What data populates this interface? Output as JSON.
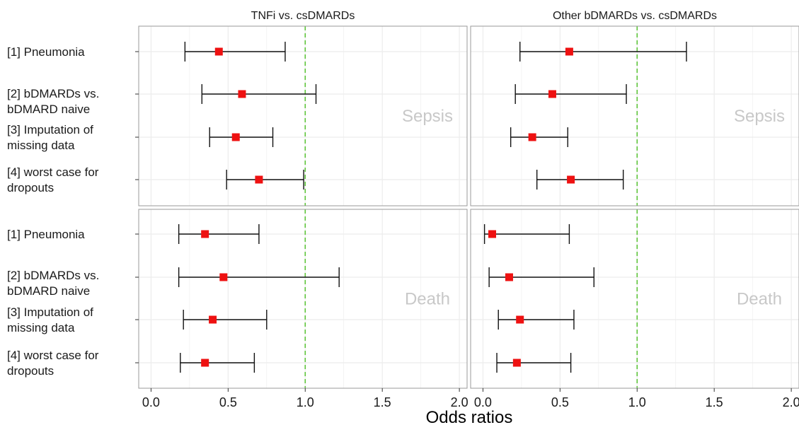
{
  "chart_data": {
    "type": "forest",
    "xlabel": "Odds ratios",
    "xlim": [
      -0.08,
      2.05
    ],
    "x_ticks": [
      "0.0",
      "0.5",
      "1.0",
      "1.5",
      "2.0"
    ],
    "reference_line": 1.0,
    "reference_color": "#5ec43a",
    "point_color": "#ee1111",
    "grid": true,
    "columns": [
      "TNFi vs. csDMARDs",
      "Other bDMARDs vs. csDMARDs"
    ],
    "rows": [
      "Sepsis",
      "Death"
    ],
    "categories": [
      [
        "[1] Pneumonia"
      ],
      [
        "[2] bDMARDs vs.",
        "bDMARD naive"
      ],
      [
        "[3] Imputation of",
        "missing data"
      ],
      [
        "[4] worst case for",
        "dropouts"
      ]
    ],
    "panels": [
      {
        "row": "Sepsis",
        "column": "TNFi vs. csDMARDs",
        "points": [
          {
            "or": 0.44,
            "lo": 0.22,
            "hi": 0.87
          },
          {
            "or": 0.59,
            "lo": 0.33,
            "hi": 1.07
          },
          {
            "or": 0.55,
            "lo": 0.38,
            "hi": 0.79
          },
          {
            "or": 0.7,
            "lo": 0.49,
            "hi": 0.99
          }
        ]
      },
      {
        "row": "Sepsis",
        "column": "Other bDMARDs vs. csDMARDs",
        "points": [
          {
            "or": 0.56,
            "lo": 0.24,
            "hi": 1.32
          },
          {
            "or": 0.45,
            "lo": 0.21,
            "hi": 0.93
          },
          {
            "or": 0.32,
            "lo": 0.18,
            "hi": 0.55
          },
          {
            "or": 0.57,
            "lo": 0.35,
            "hi": 0.91
          }
        ]
      },
      {
        "row": "Death",
        "column": "TNFi vs. csDMARDs",
        "points": [
          {
            "or": 0.35,
            "lo": 0.18,
            "hi": 0.7
          },
          {
            "or": 0.47,
            "lo": 0.18,
            "hi": 1.22
          },
          {
            "or": 0.4,
            "lo": 0.21,
            "hi": 0.75
          },
          {
            "or": 0.35,
            "lo": 0.19,
            "hi": 0.67
          }
        ]
      },
      {
        "row": "Death",
        "column": "Other bDMARDs vs. csDMARDs",
        "points": [
          {
            "or": 0.06,
            "lo": 0.01,
            "hi": 0.56
          },
          {
            "or": 0.17,
            "lo": 0.04,
            "hi": 0.72
          },
          {
            "or": 0.24,
            "lo": 0.1,
            "hi": 0.59
          },
          {
            "or": 0.22,
            "lo": 0.09,
            "hi": 0.57
          }
        ]
      }
    ]
  }
}
